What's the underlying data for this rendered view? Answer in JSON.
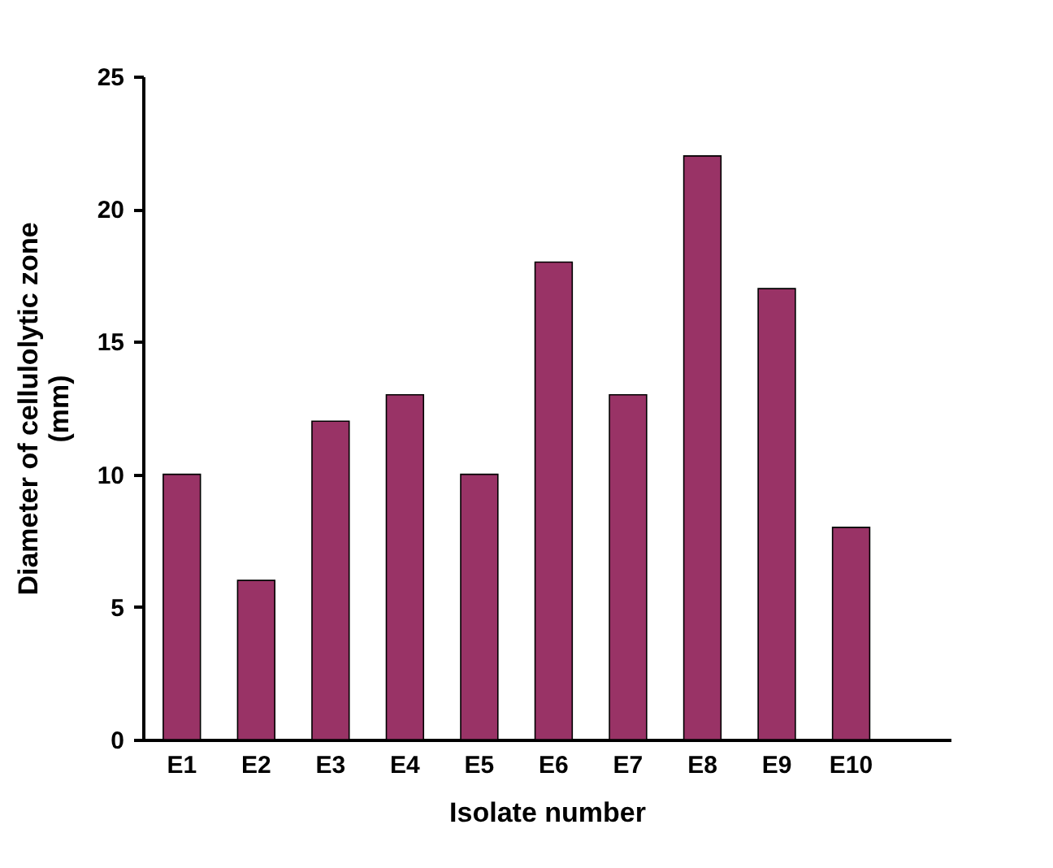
{
  "chart_data": {
    "type": "bar",
    "xlabel": "Isolate number",
    "ylabel": "Diameter of cellulolytic zone\n(mm)",
    "categories": [
      "E1",
      "E2",
      "E3",
      "E4",
      "E5",
      "E6",
      "E7",
      "E8",
      "E9",
      "E10"
    ],
    "values": [
      10,
      6,
      12,
      13,
      10,
      18,
      13,
      22,
      17,
      8
    ],
    "color": "#993366",
    "ylim": [
      0,
      25
    ],
    "yticks": [
      0,
      5,
      10,
      15,
      20,
      25
    ],
    "grid": false
  }
}
